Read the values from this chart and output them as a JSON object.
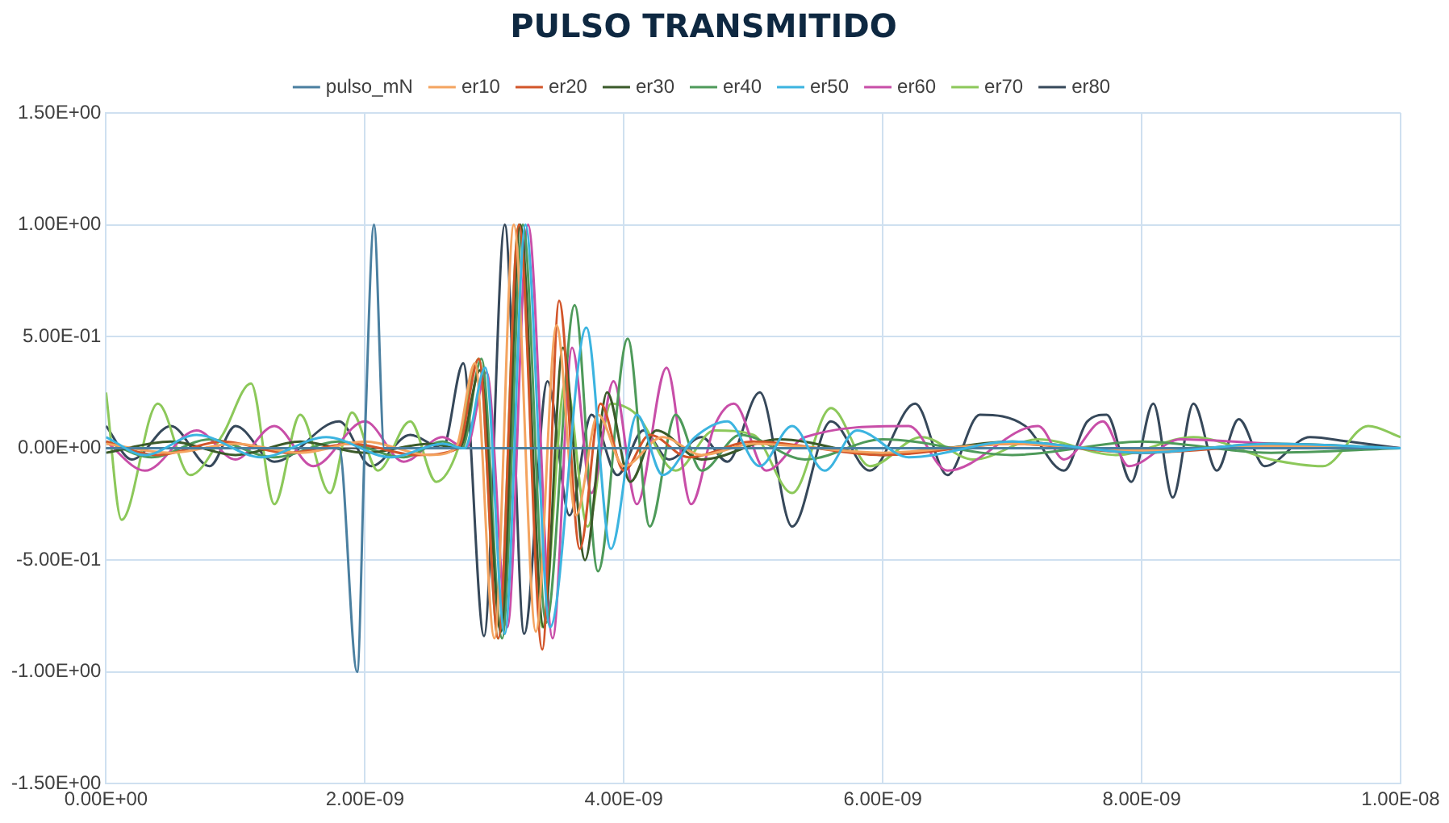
{
  "chart_data": {
    "type": "line",
    "title": "PULSO TRANSMITIDO",
    "legend": "top",
    "grid": true,
    "marker": "none",
    "line_style": "solid",
    "xlim": [
      0,
      1e-08
    ],
    "xticks": [
      {
        "value": 0,
        "label": "0.00E+00"
      },
      {
        "value": 2e-09,
        "label": "2.00E-09"
      },
      {
        "value": 4e-09,
        "label": "4.00E-09"
      },
      {
        "value": 6e-09,
        "label": "6.00E-09"
      },
      {
        "value": 8e-09,
        "label": "8.00E-09"
      },
      {
        "value": 1e-08,
        "label": "1.00E-08"
      }
    ],
    "ylim": [
      -1.5,
      1.5
    ],
    "yticks": [
      {
        "value": -1.5,
        "label": "-1.50E+00"
      },
      {
        "value": -1,
        "label": "-1.00E+00"
      },
      {
        "value": -0.5,
        "label": "-5.00E-01"
      },
      {
        "value": 0,
        "label": "0.00E+00"
      },
      {
        "value": 0.5,
        "label": "5.00E-01"
      },
      {
        "value": 1,
        "label": "1.00E+00"
      },
      {
        "value": 1.5,
        "label": "1.50E+00"
      }
    ],
    "series": [
      {
        "name": "pulso_mN",
        "color": "#4a7fa0",
        "x": [
          0,
          1.8e-09,
          1.94e-09,
          2e-09,
          2.07e-09,
          2.15e-09,
          2.25e-09,
          1e-08
        ],
        "values": [
          0,
          0,
          -1,
          0.05,
          1,
          0,
          0,
          0
        ]
      },
      {
        "name": "er10",
        "color": "#f4a460",
        "x": [
          0,
          5e-10,
          1e-09,
          1.5e-09,
          2e-09,
          2.5e-09,
          2.7e-09,
          2.85e-09,
          3e-09,
          3.15e-09,
          3.32e-09,
          3.48e-09,
          3.63e-09,
          3.8e-09,
          4e-09,
          4.3e-09,
          4.6e-09,
          5e-09,
          6e-09,
          7e-09,
          8e-09,
          9e-09,
          1e-08
        ],
        "values": [
          0.02,
          -0.02,
          0.02,
          -0.02,
          0.03,
          -0.03,
          0,
          0.38,
          -0.85,
          1.0,
          -0.82,
          0.55,
          -0.3,
          0.15,
          -0.08,
          0.05,
          -0.03,
          0.02,
          -0.02,
          0.02,
          -0.01,
          0.01,
          0
        ]
      },
      {
        "name": "er20",
        "color": "#d2552a",
        "x": [
          0,
          4e-10,
          9e-10,
          1.4e-09,
          1.9e-09,
          2.4e-09,
          2.72e-09,
          2.88e-09,
          3.03e-09,
          3.19e-09,
          3.37e-09,
          3.5e-09,
          3.66e-09,
          3.82e-09,
          4e-09,
          4.2e-09,
          4.5e-09,
          5e-09,
          6e-09,
          7e-09,
          8e-09,
          9e-09,
          1e-08
        ],
        "values": [
          0.03,
          -0.03,
          0.03,
          -0.02,
          0.02,
          -0.03,
          0,
          0.4,
          -0.85,
          1.0,
          -0.9,
          0.66,
          -0.45,
          0.2,
          -0.1,
          0.06,
          -0.04,
          0.03,
          -0.03,
          0.02,
          -0.02,
          0.01,
          0
        ]
      },
      {
        "name": "er30",
        "color": "#3b5a2a",
        "x": [
          0,
          5e-10,
          1e-09,
          1.5e-09,
          2e-09,
          2.5e-09,
          2.73e-09,
          2.89e-09,
          3.05e-09,
          3.2e-09,
          3.38e-09,
          3.53e-09,
          3.7e-09,
          3.87e-09,
          4.05e-09,
          4.25e-09,
          4.6e-09,
          5.2e-09,
          6e-09,
          7e-09,
          8e-09,
          9e-09,
          1e-08
        ],
        "values": [
          -0.02,
          0.03,
          -0.03,
          0.03,
          -0.02,
          0.02,
          0,
          0.35,
          -0.82,
          1.0,
          -0.8,
          0.45,
          -0.5,
          0.25,
          -0.15,
          0.08,
          -0.05,
          0.04,
          -0.03,
          0.03,
          -0.02,
          0.02,
          0
        ]
      },
      {
        "name": "er40",
        "color": "#4e9a5a",
        "x": [
          0,
          3.5e-10,
          8e-10,
          1.3e-09,
          1.8e-09,
          2.3e-09,
          2.6e-09,
          2.75e-09,
          2.9e-09,
          3.06e-09,
          3.22e-09,
          3.4e-09,
          3.62e-09,
          3.8e-09,
          4.03e-09,
          4.2e-09,
          4.4e-09,
          4.6e-09,
          4.9e-09,
          5.4e-09,
          6e-09,
          7e-09,
          8e-09,
          9e-09,
          1e-08
        ],
        "values": [
          0.03,
          -0.04,
          0.04,
          -0.04,
          0.03,
          -0.04,
          0.03,
          0,
          0.4,
          -0.85,
          1.0,
          -0.78,
          0.64,
          -0.55,
          0.49,
          -0.35,
          0.15,
          -0.1,
          0.06,
          -0.05,
          0.04,
          -0.03,
          0.03,
          -0.02,
          0
        ]
      },
      {
        "name": "er50",
        "color": "#3cb4e0",
        "x": [
          0,
          3e-10,
          7e-10,
          1.2e-09,
          1.7e-09,
          2.2e-09,
          2.6e-09,
          2.77e-09,
          2.93e-09,
          3.08e-09,
          3.24e-09,
          3.43e-09,
          3.71e-09,
          3.9e-09,
          4.1e-09,
          4.3e-09,
          4.55e-09,
          4.8e-09,
          5.05e-09,
          5.3e-09,
          5.55e-09,
          5.8e-09,
          6.2e-09,
          7e-09,
          8e-09,
          9e-09,
          1e-08
        ],
        "values": [
          0.05,
          -0.03,
          0.06,
          -0.04,
          0.05,
          -0.04,
          0.02,
          0,
          0.36,
          -0.83,
          1.0,
          -0.8,
          0.54,
          -0.45,
          0.15,
          -0.12,
          0.05,
          0.12,
          -0.08,
          0.1,
          -0.1,
          0.08,
          -0.04,
          0.03,
          -0.02,
          0.02,
          0
        ]
      },
      {
        "name": "er60",
        "color": "#c84ea8",
        "x": [
          0,
          3e-10,
          7e-10,
          1e-09,
          1.3e-09,
          1.6e-09,
          2e-09,
          2.3e-09,
          2.6e-09,
          2.78e-09,
          2.94e-09,
          3.1e-09,
          3.26e-09,
          3.45e-09,
          3.6e-09,
          3.75e-09,
          3.92e-09,
          4.1e-09,
          4.33e-09,
          4.52e-09,
          4.7e-09,
          4.85e-09,
          5.1e-09,
          5.4e-09,
          6.2e-09,
          6.5e-09,
          7.2e-09,
          7.4e-09,
          7.7e-09,
          7.9e-09,
          8.3e-09,
          9e-09,
          1e-08
        ],
        "values": [
          0.03,
          -0.1,
          0.08,
          -0.05,
          0.1,
          -0.08,
          0.12,
          -0.06,
          0.05,
          0,
          0.34,
          -0.8,
          1.0,
          -0.85,
          0.45,
          -0.2,
          0.3,
          -0.25,
          0.36,
          -0.25,
          0.1,
          0.2,
          -0.1,
          0.05,
          0.1,
          -0.1,
          0.1,
          -0.05,
          0.12,
          -0.08,
          0.04,
          0.02,
          0
        ]
      },
      {
        "name": "er70",
        "color": "#8cc85a",
        "x": [
          0,
          1.2e-10,
          4e-10,
          6.5e-10,
          9e-10,
          1.12e-09,
          1.3e-09,
          1.5e-09,
          1.73e-09,
          1.9e-09,
          2.1e-09,
          2.35e-09,
          2.55e-09,
          2.72e-09,
          2.88e-09,
          3.03e-09,
          3.19e-09,
          3.37e-09,
          3.55e-09,
          3.72e-09,
          3.9e-09,
          4.1e-09,
          4.4e-09,
          4.7e-09,
          5e-09,
          5.3e-09,
          5.6e-09,
          5.9e-09,
          6.3e-09,
          6.7e-09,
          7.2e-09,
          7.8e-09,
          8.4e-09,
          9e-09,
          9.4e-09,
          9.75e-09,
          1e-08
        ],
        "values": [
          0.25,
          -0.32,
          0.2,
          -0.12,
          0.06,
          0.29,
          -0.25,
          0.15,
          -0.2,
          0.16,
          -0.1,
          0.12,
          -0.15,
          0,
          0.4,
          -0.85,
          1.0,
          -0.8,
          0.3,
          -0.35,
          0.2,
          0.15,
          -0.1,
          0.08,
          0.06,
          -0.2,
          0.18,
          -0.08,
          0.05,
          -0.05,
          0.04,
          -0.03,
          0.05,
          -0.05,
          -0.08,
          0.1,
          0.05
        ]
      },
      {
        "name": "er80",
        "color": "#36485a",
        "x": [
          0,
          2e-10,
          5e-10,
          8e-10,
          1e-09,
          1.3e-09,
          1.8e-09,
          2.05e-09,
          2.35e-09,
          2.6e-09,
          2.76e-09,
          2.92e-09,
          3.08e-09,
          3.23e-09,
          3.41e-09,
          3.58e-09,
          3.75e-09,
          3.95e-09,
          4.15e-09,
          4.35e-09,
          4.6e-09,
          4.8e-09,
          5.05e-09,
          5.3e-09,
          5.6e-09,
          5.9e-09,
          6.25e-09,
          6.5e-09,
          6.75e-09,
          7.1e-09,
          7.4e-09,
          7.58e-09,
          7.73e-09,
          7.92e-09,
          8.09e-09,
          8.24e-09,
          8.4e-09,
          8.58e-09,
          8.75e-09,
          8.95e-09,
          9.3e-09,
          9.6e-09,
          1e-08
        ],
        "values": [
          0.1,
          -0.05,
          0.1,
          -0.08,
          0.1,
          -0.06,
          0.12,
          -0.08,
          0.06,
          0,
          0.38,
          -0.84,
          1.0,
          -0.83,
          0.3,
          -0.3,
          0.15,
          -0.12,
          0.08,
          -0.05,
          0.05,
          -0.06,
          0.25,
          -0.35,
          0.12,
          -0.1,
          0.2,
          -0.12,
          0.15,
          0.1,
          -0.1,
          0.12,
          0.15,
          -0.15,
          0.2,
          -0.22,
          0.2,
          -0.1,
          0.13,
          -0.08,
          0.05,
          0.03,
          0
        ]
      }
    ]
  }
}
